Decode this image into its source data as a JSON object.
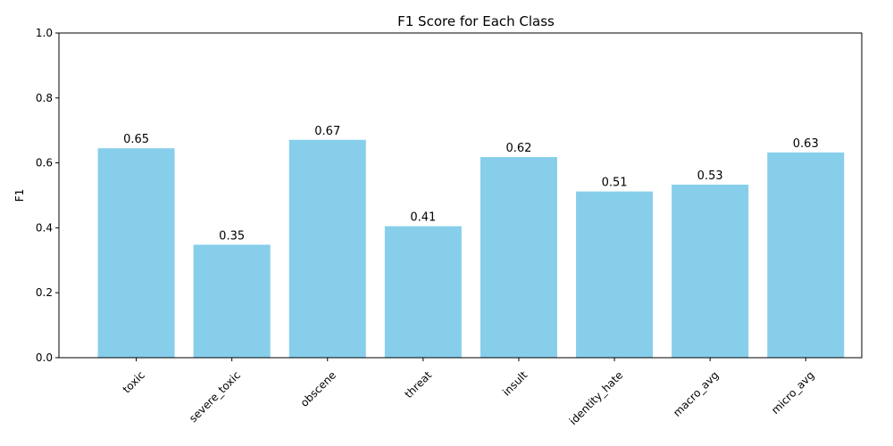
{
  "chart_data": {
    "type": "bar",
    "title": "F1 Score for Each Class",
    "xlabel": "",
    "ylabel": "F1",
    "categories": [
      "toxic",
      "severe_toxic",
      "obscene",
      "threat",
      "insult",
      "identity_hate",
      "macro_avg",
      "micro_avg"
    ],
    "values": [
      0.645,
      0.348,
      0.671,
      0.405,
      0.618,
      0.512,
      0.533,
      0.632
    ],
    "value_labels": [
      "0.65",
      "0.35",
      "0.67",
      "0.41",
      "0.62",
      "0.51",
      "0.53",
      "0.63"
    ],
    "ylim": [
      0,
      1
    ],
    "yticks": [
      0.0,
      0.2,
      0.4,
      0.6,
      0.8,
      1.0
    ],
    "ytick_labels": [
      "0.0",
      "0.2",
      "0.4",
      "0.6",
      "0.8",
      "1.0"
    ],
    "grid": false,
    "bar_color": "#87CEEB"
  }
}
